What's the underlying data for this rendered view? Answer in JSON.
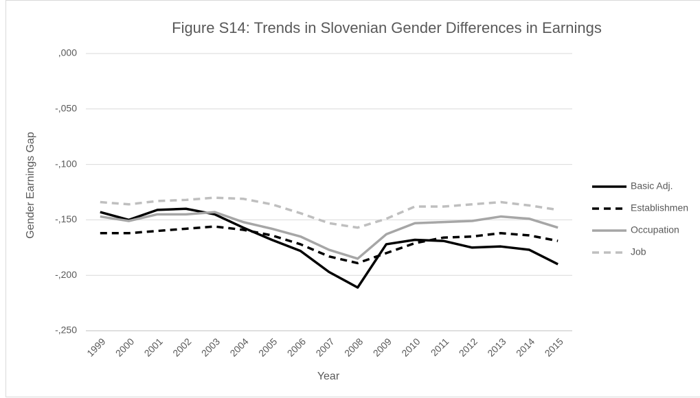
{
  "chart_data": {
    "type": "line",
    "title": "Figure S14: Trends in Slovenian Gender Differences in Earnings",
    "x_label": "Year",
    "y_label": "Gender Earnings Gap",
    "categories": [
      "1999",
      "2000",
      "2001",
      "2002",
      "2003",
      "2004",
      "2005",
      "2006",
      "2007",
      "2008",
      "2009",
      "2010",
      "2011",
      "2012",
      "2013",
      "2014",
      "2015"
    ],
    "series": [
      {
        "name": "Basic Adj.",
        "color": "#000000",
        "dashed": false,
        "values": [
          -0.143,
          -0.15,
          -0.141,
          -0.14,
          -0.145,
          -0.157,
          -0.168,
          -0.178,
          -0.197,
          -0.211,
          -0.172,
          -0.168,
          -0.169,
          -0.175,
          -0.174,
          -0.177,
          -0.19
        ]
      },
      {
        "name": "Establishmen",
        "color": "#000000",
        "dashed": true,
        "values": [
          -0.162,
          -0.162,
          -0.16,
          -0.158,
          -0.156,
          -0.159,
          -0.164,
          -0.172,
          -0.183,
          -0.189,
          -0.18,
          -0.171,
          -0.166,
          -0.165,
          -0.162,
          -0.164,
          -0.169
        ]
      },
      {
        "name": "Occupation",
        "color": "#a6a6a6",
        "dashed": false,
        "values": [
          -0.147,
          -0.151,
          -0.145,
          -0.145,
          -0.143,
          -0.152,
          -0.158,
          -0.165,
          -0.177,
          -0.185,
          -0.163,
          -0.153,
          -0.152,
          -0.151,
          -0.147,
          -0.149,
          -0.157
        ]
      },
      {
        "name": "Job",
        "color": "#bfbfbf",
        "dashed": true,
        "values": [
          -0.134,
          -0.136,
          -0.133,
          -0.132,
          -0.13,
          -0.131,
          -0.136,
          -0.144,
          -0.153,
          -0.157,
          -0.149,
          -0.138,
          -0.138,
          -0.136,
          -0.134,
          -0.137,
          -0.141
        ]
      }
    ],
    "ylim": [
      -0.25,
      0
    ],
    "yticks": [
      {
        "value": -0.25,
        "label": "-,250"
      },
      {
        "value": -0.2,
        "label": "-,200"
      },
      {
        "value": -0.15,
        "label": "-,150"
      },
      {
        "value": -0.1,
        "label": "-,100"
      },
      {
        "value": -0.05,
        "label": "-,050"
      },
      {
        "value": 0,
        "label": ",000"
      }
    ],
    "grid": true,
    "legend": "right"
  }
}
